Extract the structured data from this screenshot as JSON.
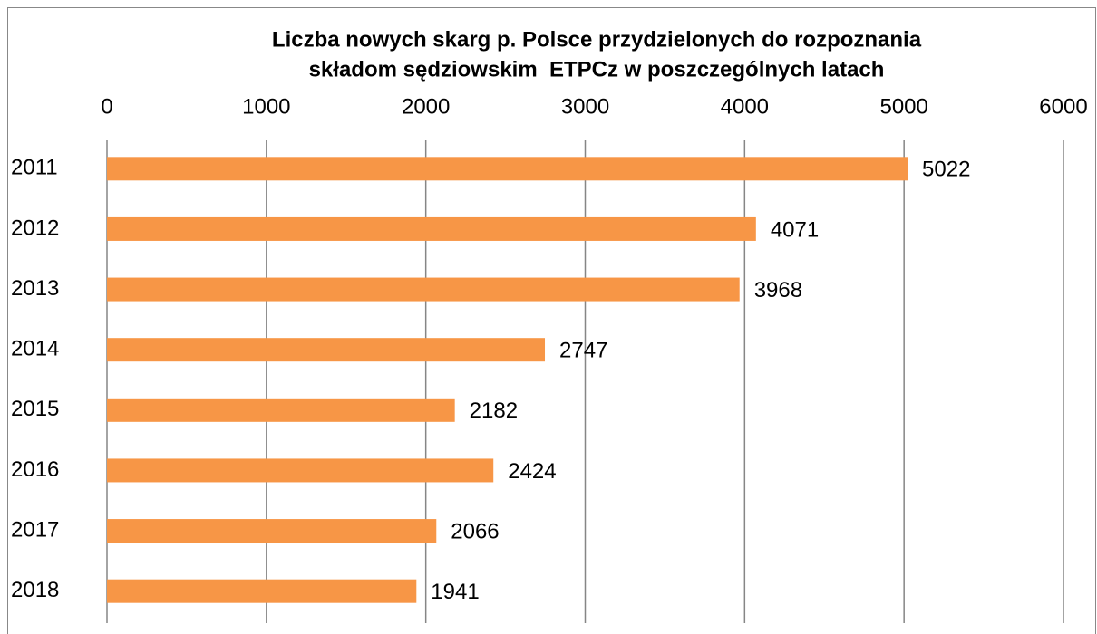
{
  "chart_data": {
    "type": "bar",
    "orientation": "horizontal",
    "title": [
      "Liczba nowych skarg p. Polsce przydzielonych do rozpoznania",
      "składom sędziowskim  ETPCz w poszczególnych latach"
    ],
    "categories": [
      "2011",
      "2012",
      "2013",
      "2014",
      "2015",
      "2016",
      "2017",
      "2018"
    ],
    "values": [
      5022,
      4071,
      3968,
      2747,
      2182,
      2424,
      2066,
      1941
    ],
    "color": "#f79646",
    "xlim": [
      0,
      6000
    ],
    "xticks": [
      0,
      1000,
      2000,
      3000,
      4000,
      5000,
      6000
    ],
    "grid": true
  }
}
